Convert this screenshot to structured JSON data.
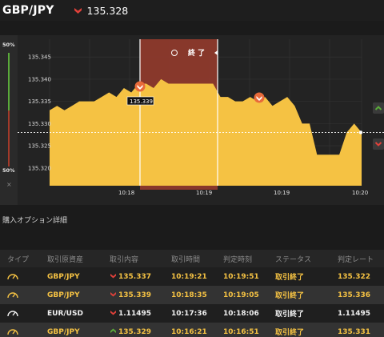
{
  "header": {
    "pair": "GBP/JPY",
    "price": "135.328",
    "direction": "down",
    "down_color": "#e0413a"
  },
  "meter": {
    "top_label": "50%",
    "bottom_label": "50%",
    "close_label": "×"
  },
  "chart": {
    "overlay_label": "終 了",
    "tooltip_price": "135.339",
    "y_ticks": [
      "135.345",
      "135.340",
      "135.335",
      "135.330",
      "135.325",
      "135.320"
    ],
    "x_ticks": [
      "10:18",
      "10:19",
      "10:19",
      "10:20"
    ],
    "area_color": "#f5c243",
    "overlay_color": "#8e3a2c"
  },
  "chart_data": {
    "type": "area",
    "ylim": [
      135.316,
      135.349
    ],
    "x_ticks": [
      "10:18",
      "10:19",
      "10:19",
      "10:20"
    ],
    "y_ticks": [
      135.345,
      135.34,
      135.335,
      135.33,
      135.325,
      135.32
    ],
    "current_price": 135.328,
    "entry_marker": 135.339,
    "values": [
      135.333,
      135.334,
      135.333,
      135.334,
      135.335,
      135.335,
      135.335,
      135.336,
      135.337,
      135.336,
      135.338,
      135.337,
      135.339,
      135.339,
      135.338,
      135.34,
      135.339,
      135.339,
      135.339,
      135.339,
      135.339,
      135.339,
      135.339,
      135.336,
      135.336,
      135.335,
      135.335,
      135.336,
      135.335,
      135.336,
      135.334,
      135.335,
      135.336,
      135.334,
      135.33,
      135.33,
      135.323,
      135.323,
      135.323,
      135.323,
      135.328,
      135.33,
      135.328
    ]
  },
  "section_title": "購入オプション詳細",
  "table": {
    "headers": [
      "タイプ",
      "取引原資産",
      "取引内容",
      "取引時間",
      "判定時刻",
      "ステータス",
      "判定レート"
    ],
    "rows": [
      {
        "asset": "GBP/JPY",
        "direction": "down",
        "rate": "135.337",
        "trade_time": "10:19:21",
        "judge_time": "10:19:51",
        "status": "取引終了",
        "judge_rate": "135.322"
      },
      {
        "asset": "GBP/JPY",
        "direction": "down",
        "rate": "135.339",
        "trade_time": "10:18:35",
        "judge_time": "10:19:05",
        "status": "取引終了",
        "judge_rate": "135.336"
      },
      {
        "asset": "EUR/USD",
        "direction": "down",
        "rate": "1.11495",
        "trade_time": "10:17:36",
        "judge_time": "10:18:06",
        "status": "取引終了",
        "judge_rate": "1.11495"
      },
      {
        "asset": "GBP/JPY",
        "direction": "up",
        "rate": "135.329",
        "trade_time": "10:16:21",
        "judge_time": "10:16:51",
        "status": "取引終了",
        "judge_rate": "135.331"
      }
    ]
  }
}
